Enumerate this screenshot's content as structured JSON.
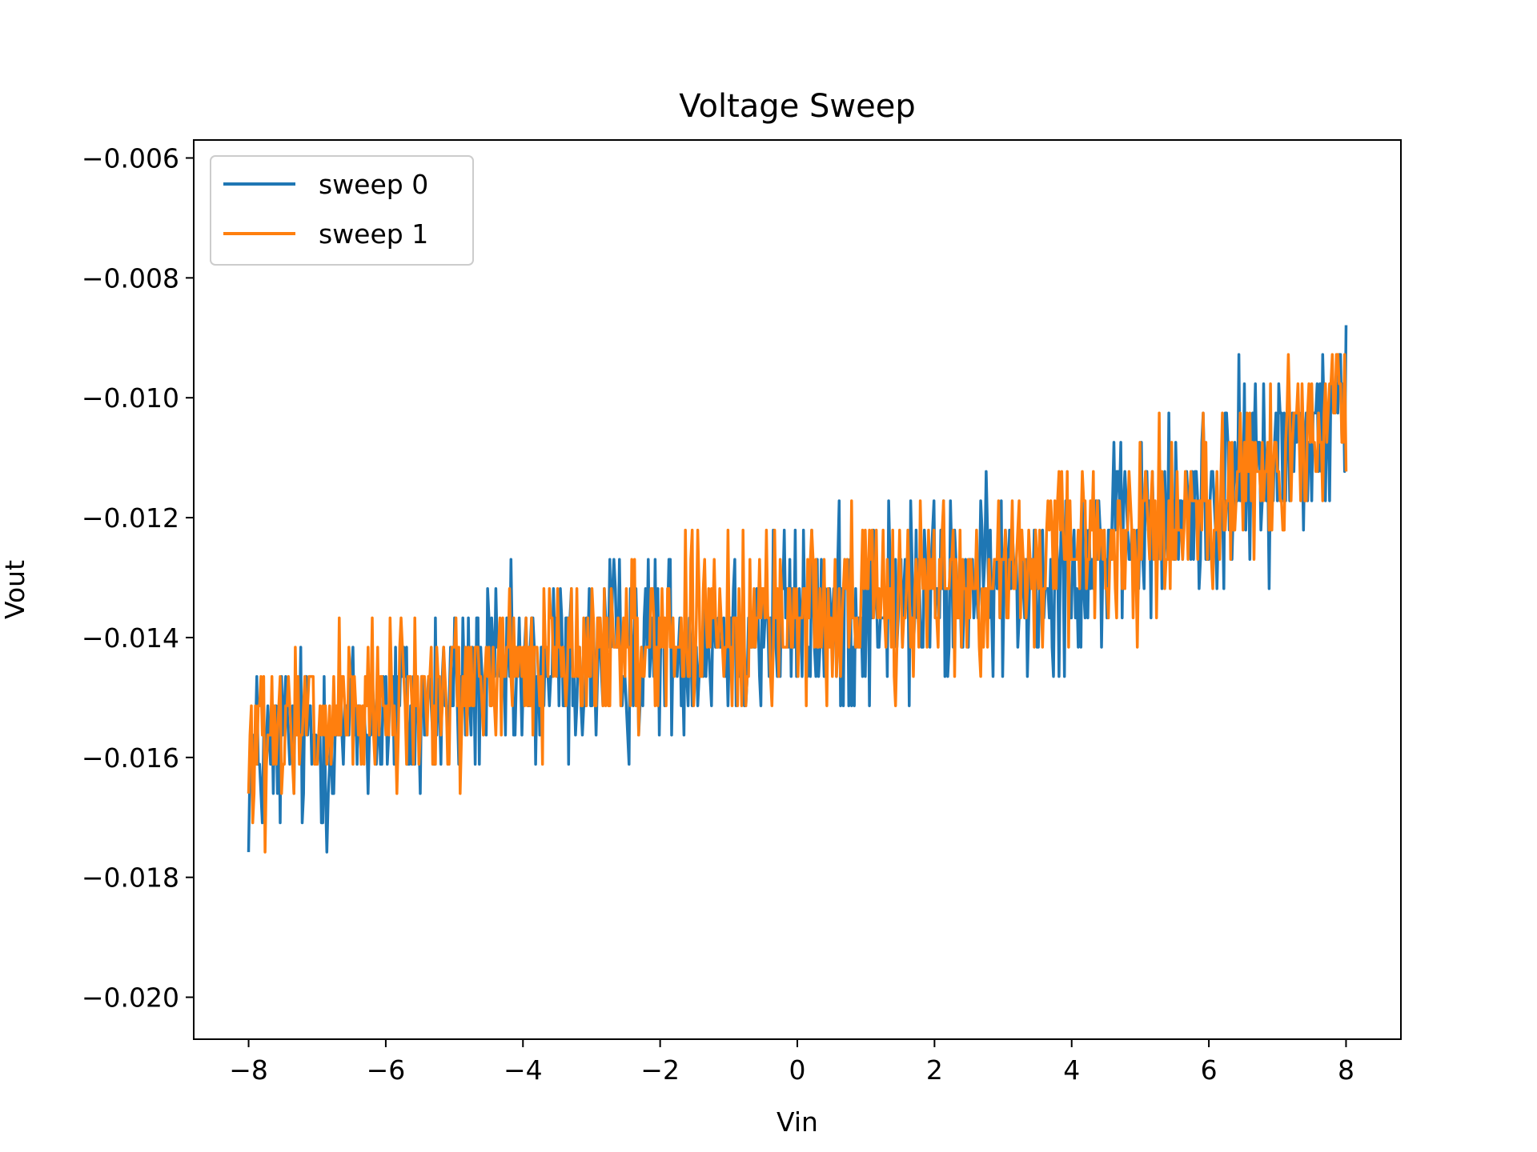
{
  "chart_data": {
    "type": "line",
    "title": "Voltage Sweep",
    "xlabel": "Vin",
    "ylabel": "Vout",
    "xlim": [
      -8.8,
      8.8
    ],
    "ylim": [
      -0.0207,
      -0.0057
    ],
    "x_ticks": [
      -8,
      -6,
      -4,
      -2,
      0,
      2,
      4,
      6,
      8
    ],
    "x_tick_labels": [
      "−8",
      "−6",
      "−4",
      "−2",
      "0",
      "2",
      "4",
      "6",
      "8"
    ],
    "y_ticks": [
      -0.02,
      -0.018,
      -0.016,
      -0.014,
      -0.012,
      -0.01,
      -0.008,
      -0.006
    ],
    "y_tick_labels": [
      "−0.020",
      "−0.018",
      "−0.016",
      "−0.014",
      "−0.012",
      "−0.010",
      "−0.008",
      "−0.006"
    ],
    "grid": false,
    "legend_position": "top-left",
    "x": [
      -8.0,
      -7.5,
      -7.0,
      -6.5,
      -6.0,
      -5.5,
      -5.0,
      -4.5,
      -4.0,
      -3.5,
      -3.0,
      -2.5,
      -2.0,
      -1.5,
      -1.0,
      -0.5,
      0.0,
      0.5,
      1.0,
      1.5,
      2.0,
      2.5,
      3.0,
      3.5,
      4.0,
      4.5,
      5.0,
      5.5,
      6.0,
      6.5,
      7.0,
      7.5,
      8.0
    ],
    "series": [
      {
        "name": "sweep 0",
        "color": "#1f77b4",
        "values": [
          -0.0162,
          -0.0158,
          -0.0157,
          -0.0155,
          -0.0153,
          -0.0152,
          -0.015,
          -0.0148,
          -0.0147,
          -0.0145,
          -0.0144,
          -0.0142,
          -0.0141,
          -0.014,
          -0.0139,
          -0.0138,
          -0.0137,
          -0.0136,
          -0.0135,
          -0.0134,
          -0.0133,
          -0.0132,
          -0.0131,
          -0.0129,
          -0.0127,
          -0.0125,
          -0.0123,
          -0.012,
          -0.0117,
          -0.0113,
          -0.011,
          -0.0106,
          -0.0102
        ],
        "noise": 0.0015
      },
      {
        "name": "sweep 1",
        "color": "#ff7f0e",
        "values": [
          -0.016,
          -0.0157,
          -0.0155,
          -0.0154,
          -0.0152,
          -0.015,
          -0.0149,
          -0.0147,
          -0.0145,
          -0.0144,
          -0.0143,
          -0.0141,
          -0.014,
          -0.0139,
          -0.0138,
          -0.0137,
          -0.0136,
          -0.0135,
          -0.0134,
          -0.0133,
          -0.0132,
          -0.0131,
          -0.013,
          -0.0128,
          -0.0126,
          -0.0124,
          -0.0122,
          -0.012,
          -0.0117,
          -0.0114,
          -0.0111,
          -0.0107,
          -0.0104
        ],
        "noise": 0.0013
      }
    ]
  }
}
